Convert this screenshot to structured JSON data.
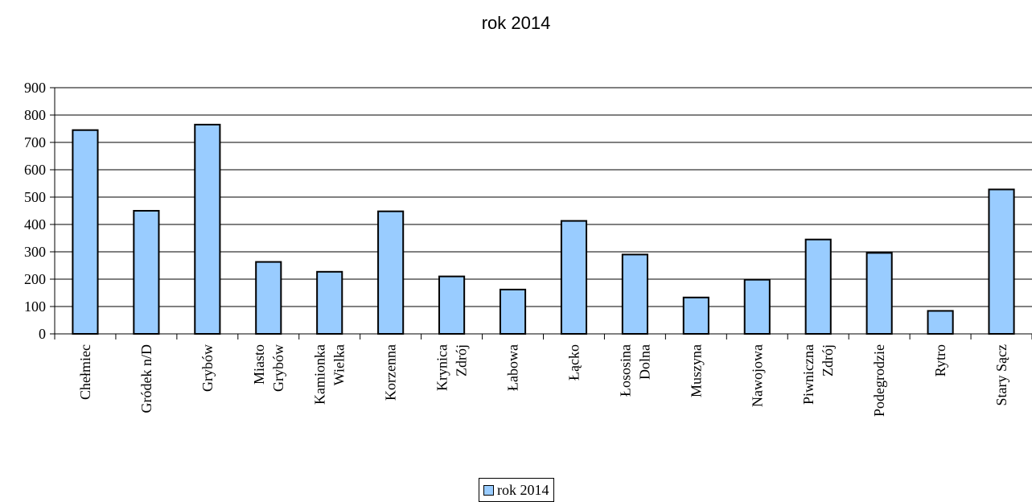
{
  "chart_data": {
    "type": "bar",
    "title": "rok 2014",
    "categories": [
      [
        "Chełmiec"
      ],
      [
        "Gródek n/D"
      ],
      [
        "Grybów"
      ],
      [
        "Miasto",
        "Grybów"
      ],
      [
        "Kamionka",
        "Wielka"
      ],
      [
        "Korzenna"
      ],
      [
        "Krynica",
        "Zdrój"
      ],
      [
        "Łabowa"
      ],
      [
        "Łącko"
      ],
      [
        "Łososina",
        "Dolna"
      ],
      [
        "Muszyna"
      ],
      [
        "Nawojowa"
      ],
      [
        "Piwniczna",
        "Zdrój"
      ],
      [
        "Podegrodzie"
      ],
      [
        "Rytro"
      ],
      [
        "Stary Sącz"
      ]
    ],
    "series": [
      {
        "name": "rok 2014",
        "values": [
          745,
          450,
          765,
          263,
          227,
          448,
          210,
          162,
          413,
          290,
          133,
          198,
          345,
          296,
          84,
          528
        ]
      }
    ],
    "ylim": [
      0,
      900
    ],
    "yticks": [
      0,
      100,
      200,
      300,
      400,
      500,
      600,
      700,
      800,
      900
    ],
    "grid": true,
    "legend": "bottom",
    "colors": {
      "bar_fill": "#99ccff",
      "bar_stroke": "#000000",
      "grid": "#000000"
    }
  }
}
